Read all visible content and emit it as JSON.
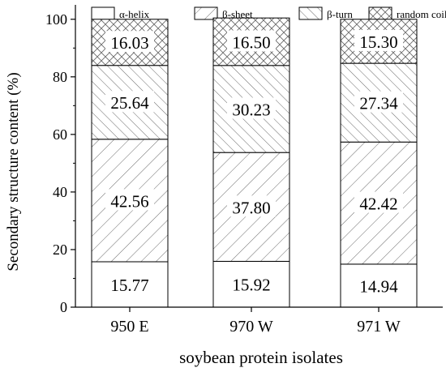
{
  "chart_data": {
    "type": "bar",
    "stacked": true,
    "title": "",
    "xlabel": "soybean protein isolates",
    "ylabel": "Secondary structure content (%)",
    "ylim": [
      0,
      105
    ],
    "yticks": [
      0,
      20,
      40,
      60,
      80,
      100
    ],
    "grid": false,
    "legend_position": "top",
    "categories": [
      "950 E",
      "970 W",
      "971 W"
    ],
    "series": [
      {
        "name": "α-helix",
        "values": [
          15.77,
          15.92,
          14.94
        ],
        "pattern": "none"
      },
      {
        "name": "β-sheet",
        "values": [
          42.56,
          37.8,
          42.42
        ],
        "pattern": "diag-wide"
      },
      {
        "name": "β-turn",
        "values": [
          25.64,
          30.23,
          27.34
        ],
        "pattern": "diag-narrow"
      },
      {
        "name": "random coil",
        "values": [
          16.03,
          16.5,
          15.3
        ],
        "pattern": "cross"
      }
    ],
    "data_labels": [
      [
        "15.77",
        "15.92",
        "14.94"
      ],
      [
        "42.56",
        "37.80",
        "42.42"
      ],
      [
        "25.64",
        "30.23",
        "27.34"
      ],
      [
        "16.03",
        "16.50",
        "15.30"
      ]
    ]
  }
}
